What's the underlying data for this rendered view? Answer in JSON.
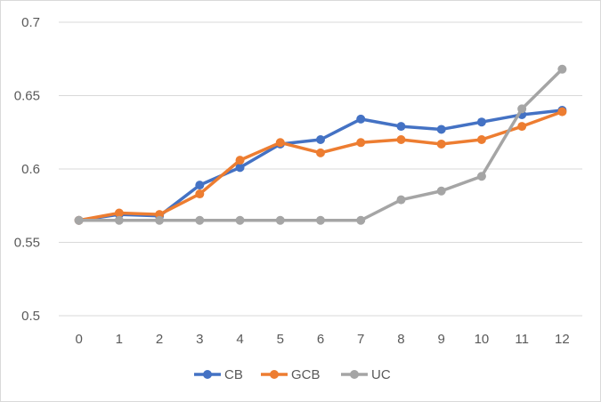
{
  "chart_data": {
    "type": "line",
    "title": "",
    "xlabel": "",
    "ylabel": "",
    "x": [
      0,
      1,
      2,
      3,
      4,
      5,
      6,
      7,
      8,
      9,
      10,
      11,
      12
    ],
    "x_tick_labels": [
      "0",
      "1",
      "2",
      "3",
      "4",
      "5",
      "6",
      "7",
      "8",
      "9",
      "10",
      "11",
      "12"
    ],
    "ylim": [
      0.5,
      0.7
    ],
    "y_ticks": [
      0.5,
      0.55,
      0.6,
      0.65,
      0.7
    ],
    "y_tick_labels": [
      "0.5",
      "0.55",
      "0.6",
      "0.65",
      "0.7"
    ],
    "grid": "horizontal",
    "legend_position": "bottom",
    "series": [
      {
        "name": "CB",
        "color": "#4472c4",
        "values": [
          0.565,
          0.569,
          0.568,
          0.589,
          0.601,
          0.617,
          0.62,
          0.634,
          0.629,
          0.627,
          0.632,
          0.637,
          0.64
        ]
      },
      {
        "name": "GCB",
        "color": "#ed7d31",
        "values": [
          0.565,
          0.57,
          0.569,
          0.583,
          0.606,
          0.618,
          0.611,
          0.618,
          0.62,
          0.617,
          0.62,
          0.629,
          0.639
        ]
      },
      {
        "name": "UC",
        "color": "#a5a5a5",
        "values": [
          0.565,
          0.565,
          0.565,
          0.565,
          0.565,
          0.565,
          0.565,
          0.565,
          0.579,
          0.585,
          0.595,
          0.641,
          0.668
        ]
      }
    ]
  }
}
